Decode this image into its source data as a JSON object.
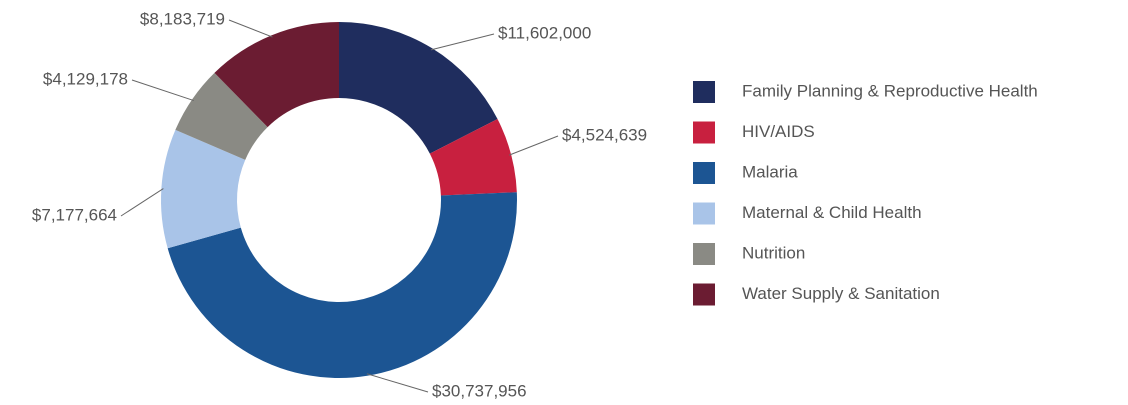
{
  "chart_data": {
    "type": "donut",
    "categories": [
      "Family Planning & Reproductive Health",
      "HIV/AIDS",
      "Malaria",
      "Maternal & Child Health",
      "Nutrition",
      "Water Supply & Sanitation"
    ],
    "values": [
      11602000,
      4524639,
      30737956,
      7177664,
      4129178,
      8183719
    ],
    "value_labels": [
      "$11,602,000",
      "$4,524,639",
      "$30,737,956",
      "$7,177,664",
      "$4,129,178",
      "$8,183,719"
    ],
    "colors": [
      "#1f2d5e",
      "#c8203f",
      "#1c5593",
      "#a9c4e8",
      "#8a8a84",
      "#6b1c32"
    ],
    "legend": "right"
  }
}
